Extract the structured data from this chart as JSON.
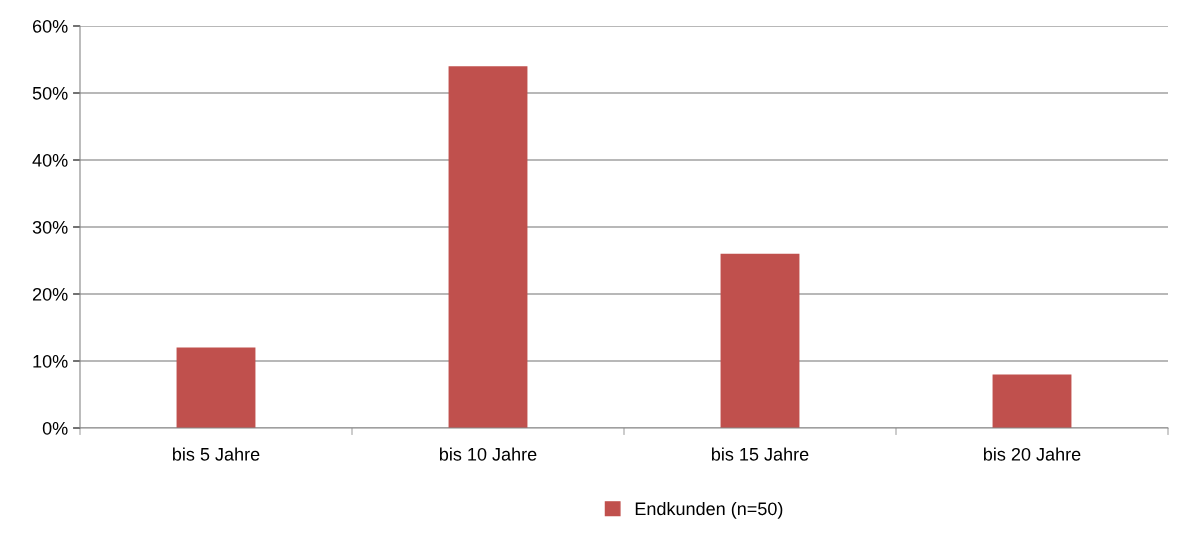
{
  "chart_data": {
    "type": "bar",
    "categories": [
      "bis 5 Jahre",
      "bis 10 Jahre",
      "bis 15 Jahre",
      "bis 20 Jahre"
    ],
    "series": [
      {
        "name": "Endkunden (n=50)",
        "color": "#c0504d",
        "values": [
          12,
          54,
          26,
          8
        ]
      }
    ],
    "ylim": [
      0,
      60
    ],
    "yticks": [
      {
        "value": 0,
        "label": "0%"
      },
      {
        "value": 10,
        "label": "10%"
      },
      {
        "value": 20,
        "label": "20%"
      },
      {
        "value": 30,
        "label": "30%"
      },
      {
        "value": 40,
        "label": "40%"
      },
      {
        "value": 50,
        "label": "50%"
      },
      {
        "value": 60,
        "label": "60%"
      }
    ],
    "grid": "y",
    "legend": "bottom"
  }
}
